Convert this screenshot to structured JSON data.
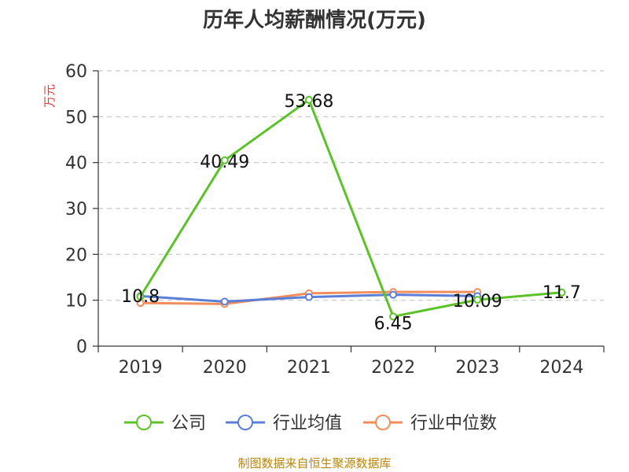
{
  "chart_data": {
    "type": "line",
    "title": "历年人均薪酬情况(万元)",
    "ylabel": "万元",
    "xlabel": "",
    "categories": [
      "2019",
      "2020",
      "2021",
      "2022",
      "2023",
      "2024"
    ],
    "ylim": [
      0,
      60
    ],
    "yticks": [
      "0",
      "10",
      "20",
      "30",
      "40",
      "50",
      "60"
    ],
    "grid": true,
    "legend_position": "bottom",
    "series": [
      {
        "name": "公司",
        "color": "#5cc22a",
        "values": [
          10.8,
          40.49,
          53.68,
          6.45,
          10.09,
          11.7
        ],
        "labels": [
          "10.8",
          "40.49",
          "53.68",
          "6.45",
          "10.09",
          "11.7"
        ]
      },
      {
        "name": "行业均值",
        "color": "#5b7fd6",
        "values": [
          10.9,
          9.7,
          10.7,
          11.2,
          10.9,
          null
        ]
      },
      {
        "name": "行业中位数",
        "color": "#f28e5c",
        "values": [
          9.4,
          9.2,
          11.5,
          11.8,
          11.8,
          null
        ]
      }
    ]
  },
  "source": "制图数据来自恒生聚源数据库"
}
